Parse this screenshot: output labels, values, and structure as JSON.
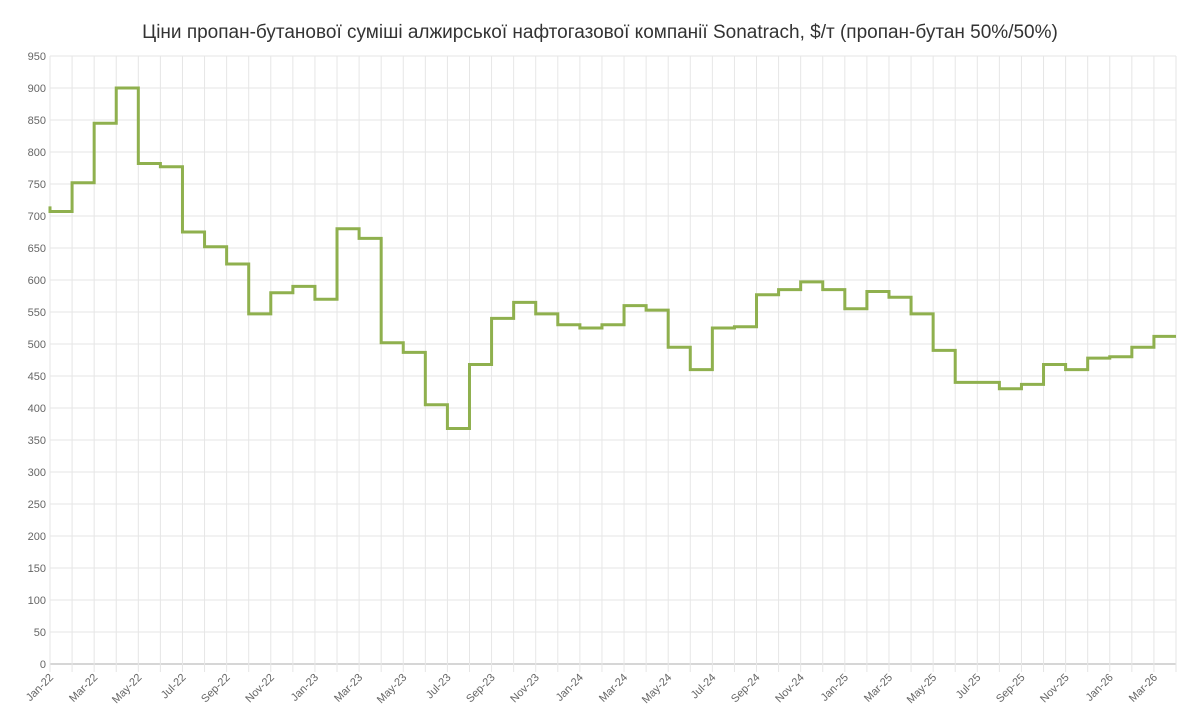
{
  "chart_data": {
    "type": "line",
    "stepped": true,
    "title": "Ціни пропан-бутанової суміші алжирської нафтогазової компанії Sonatrach, $/т (пропан-бутан 50%/50%)",
    "xlabel": "",
    "ylabel": "",
    "ylim": [
      0,
      950
    ],
    "yticks": [
      0,
      50,
      100,
      150,
      200,
      250,
      300,
      350,
      400,
      450,
      500,
      550,
      600,
      650,
      700,
      750,
      800,
      850,
      900,
      950
    ],
    "grid": true,
    "legend": "none",
    "line_color": "#8fb04e",
    "x": [
      "Jan-22",
      "Feb-22",
      "Mar-22",
      "Apr-22",
      "May-22",
      "Jun-22",
      "Jul-22",
      "Aug-22",
      "Sep-22",
      "Oct-22",
      "Nov-22",
      "Dec-22",
      "Jan-23",
      "Feb-23",
      "Mar-23",
      "Apr-23",
      "May-23",
      "Jun-23",
      "Jul-23",
      "Aug-23",
      "Sep-23",
      "Oct-23",
      "Nov-23",
      "Dec-23",
      "Jan-24",
      "Feb-24",
      "Mar-24",
      "Apr-24",
      "May-24",
      "Jun-24",
      "Jul-24",
      "Aug-24",
      "Sep-24",
      "Oct-24",
      "Nov-24",
      "Dec-24",
      "Jan-25",
      "Feb-25",
      "Mar-25",
      "Apr-25",
      "May-25",
      "Jun-25",
      "Jul-25",
      "Aug-25",
      "Sep-25",
      "Oct-25",
      "Nov-25",
      "Dec-25",
      "Jan-26",
      "Feb-26",
      "Mar-26",
      "Apr-26"
    ],
    "series": [
      {
        "name": "Sonatrach propane-butane 50/50",
        "values": [
          715,
          707,
          752,
          845,
          900,
          782,
          777,
          675,
          652,
          625,
          547,
          580,
          590,
          570,
          680,
          665,
          502,
          487,
          405,
          368,
          468,
          540,
          565,
          547,
          530,
          525,
          530,
          560,
          553,
          495,
          460,
          525,
          527,
          577,
          585,
          597,
          585,
          555,
          582,
          573,
          547,
          490,
          440,
          440,
          430,
          437,
          468,
          460,
          478,
          480,
          495,
          512
        ]
      }
    ]
  }
}
